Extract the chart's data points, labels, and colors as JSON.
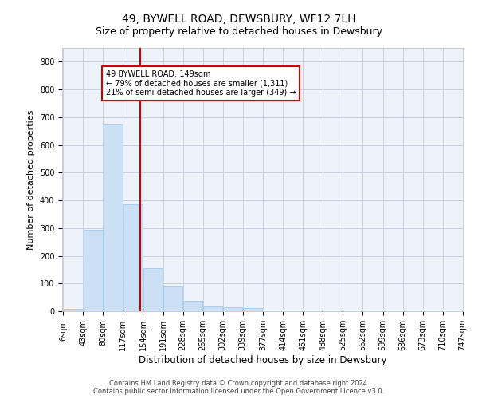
{
  "title": "49, BYWELL ROAD, DEWSBURY, WF12 7LH",
  "subtitle": "Size of property relative to detached houses in Dewsbury",
  "xlabel": "Distribution of detached houses by size in Dewsbury",
  "ylabel": "Number of detached properties",
  "bar_color": "#cce0f5",
  "bar_edge_color": "#99c4e8",
  "background_color": "#eef2fa",
  "grid_color": "#c8d0e0",
  "vline_x": 149,
  "vline_color": "#cc0000",
  "annotation_text": "49 BYWELL ROAD: 149sqm\n← 79% of detached houses are smaller (1,311)\n21% of semi-detached houses are larger (349) →",
  "annotation_box_color": "#cc0000",
  "bins_left": [
    6,
    43,
    80,
    117,
    154,
    191,
    228,
    265,
    302,
    339,
    377,
    414,
    451,
    488,
    525,
    562,
    599,
    636,
    673,
    710
  ],
  "bin_width": 37,
  "bar_heights": [
    10,
    295,
    675,
    385,
    155,
    90,
    38,
    16,
    15,
    11,
    0,
    0,
    0,
    0,
    0,
    0,
    0,
    0,
    0,
    0
  ],
  "ylim": [
    0,
    950
  ],
  "yticks": [
    0,
    100,
    200,
    300,
    400,
    500,
    600,
    700,
    800,
    900
  ],
  "footer_text": "Contains HM Land Registry data © Crown copyright and database right 2024.\nContains public sector information licensed under the Open Government Licence v3.0.",
  "title_fontsize": 10,
  "subtitle_fontsize": 9,
  "tick_fontsize": 7,
  "ylabel_fontsize": 8,
  "xlabel_fontsize": 8.5
}
